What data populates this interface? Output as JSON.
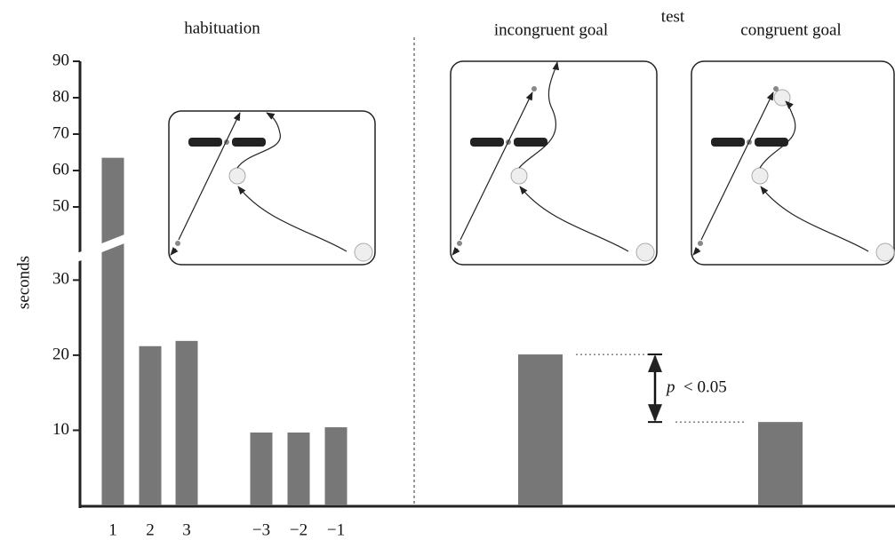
{
  "chart_data": {
    "type": "bar",
    "ylabel": "seconds",
    "ylim": [
      0,
      90
    ],
    "ybreak": [
      33,
      40
    ],
    "yticks": [
      10,
      20,
      30,
      50,
      60,
      70,
      80,
      90
    ],
    "color": "#777777",
    "groups": [
      {
        "label": "habituation",
        "categories": [
          "1",
          "2",
          "3",
          "−3",
          "−2",
          "−1"
        ],
        "values": [
          63.5,
          21.2,
          21.9,
          9.7,
          9.7,
          10.4
        ]
      },
      {
        "label": "test",
        "categories": [
          "incongruent goal",
          "congruent goal"
        ],
        "values": [
          20.1,
          11.1
        ]
      }
    ],
    "annotation": {
      "italic": "p",
      "text": "< 0.05"
    }
  }
}
